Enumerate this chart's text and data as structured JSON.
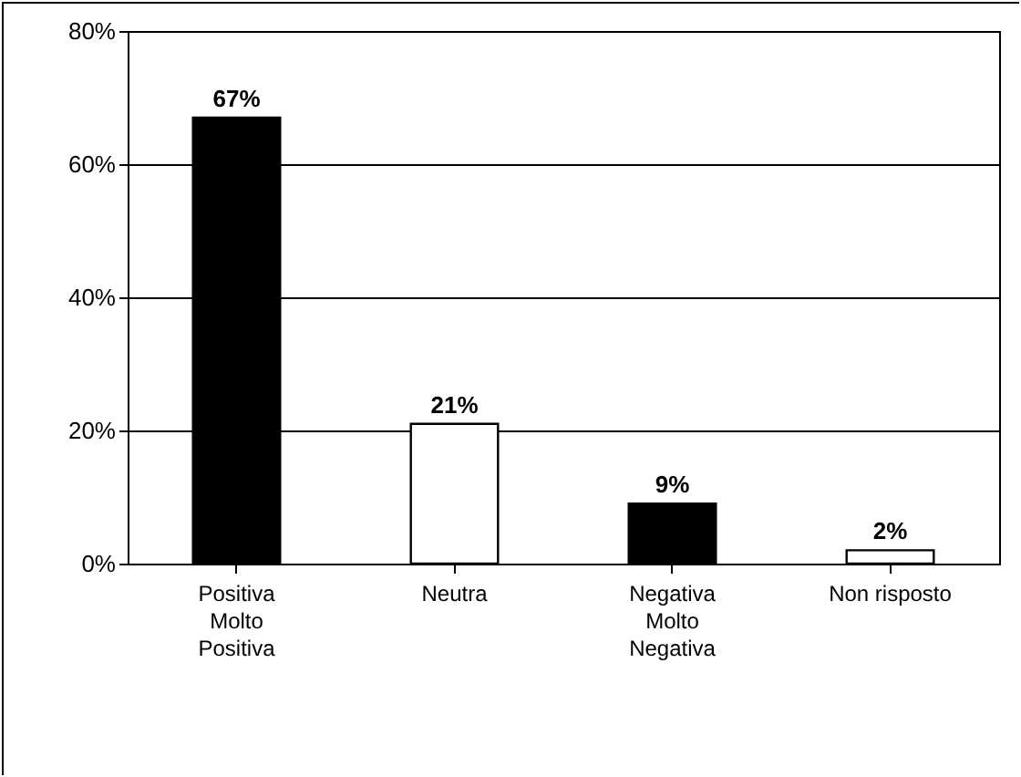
{
  "chart_data": {
    "type": "bar",
    "categories": [
      "Positiva\nMolto\nPositiva",
      "Neutra",
      "Negativa\nMolto\nNegativa",
      "Non risposto"
    ],
    "values": [
      67,
      21,
      9,
      2
    ],
    "colors": [
      "#000000",
      "#ffffff",
      "#000000",
      "#ffffff"
    ],
    "value_labels": [
      "67%",
      "21%",
      "9%",
      "2%"
    ],
    "ylim": [
      0,
      80
    ],
    "yticks": [
      {
        "value": 0,
        "label": "0%"
      },
      {
        "value": 20,
        "label": "20%"
      },
      {
        "value": 40,
        "label": "40%"
      },
      {
        "value": 60,
        "label": "60%"
      },
      {
        "value": 80,
        "label": "80%"
      }
    ],
    "grid": "y"
  }
}
